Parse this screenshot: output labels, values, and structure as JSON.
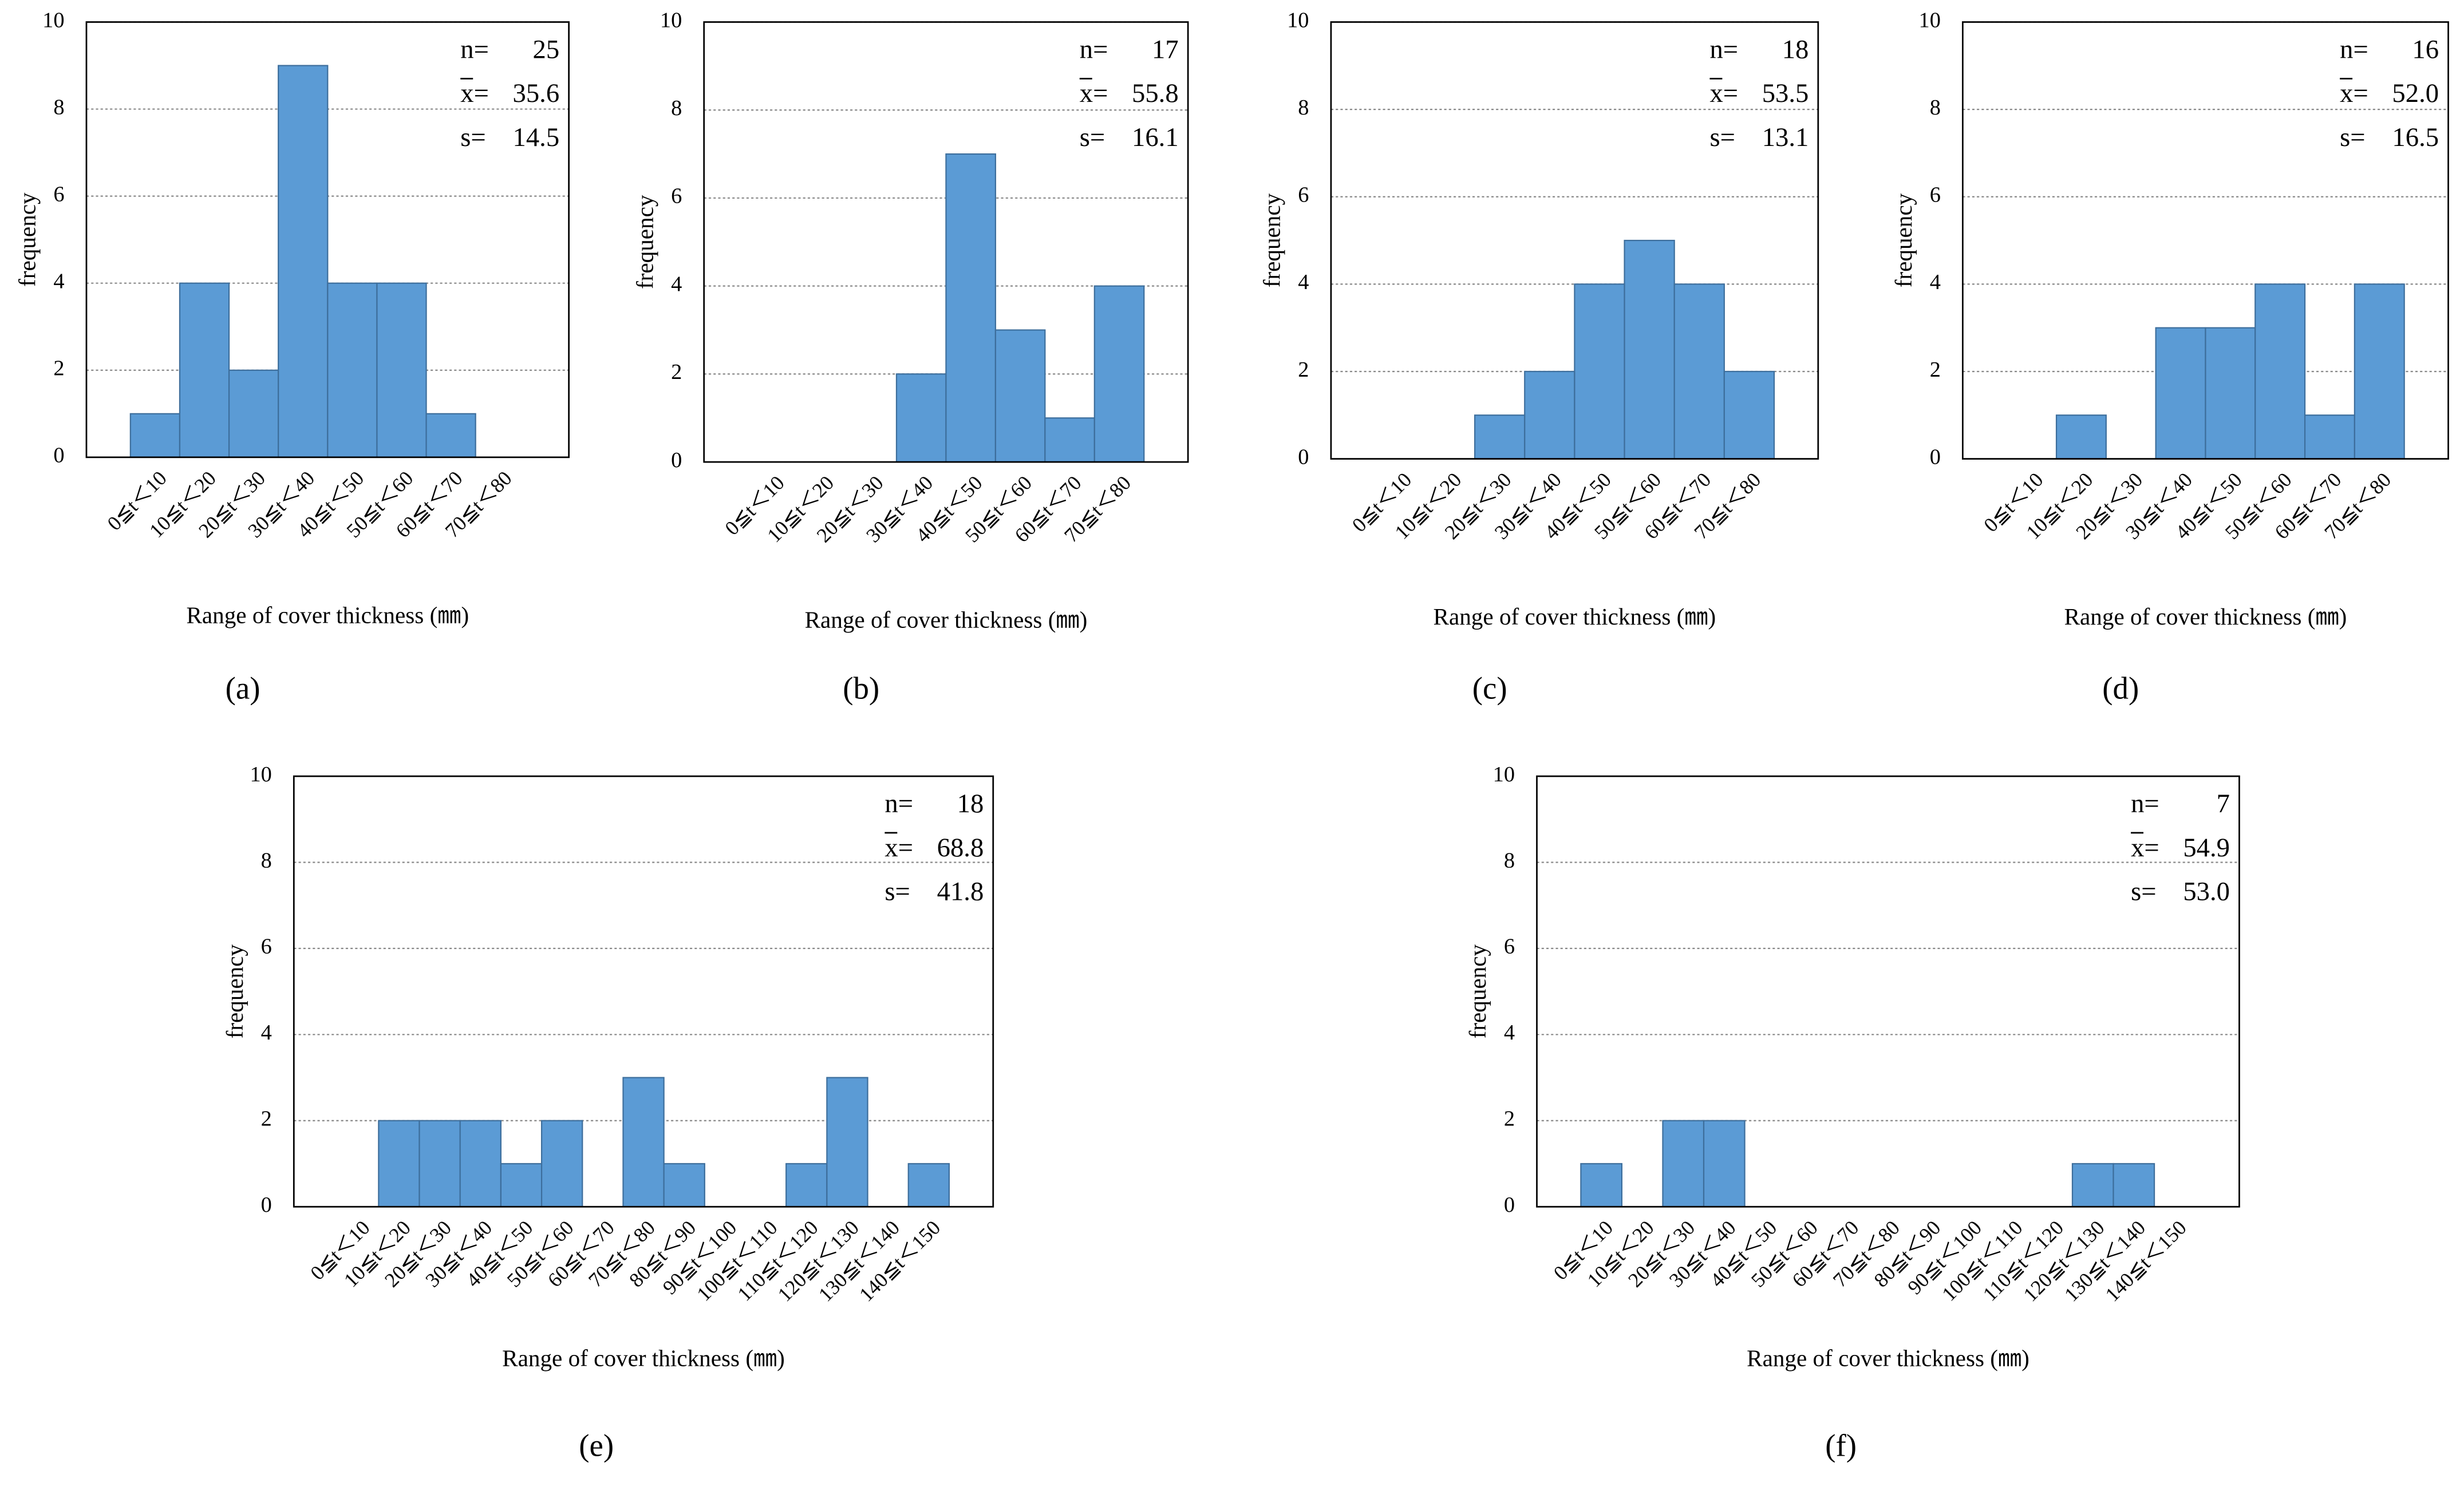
{
  "chart_data": [
    {
      "type": "bar",
      "panel_label": "(a)",
      "xlabel": "Range of cover thickness (㎜)",
      "ylabel": "frequency",
      "categories": [
        "0≦t＜10",
        "10≦t＜20",
        "20≦t＜30",
        "30≦t＜40",
        "40≦t＜50",
        "50≦t＜60",
        "60≦t＜70",
        "70≦t＜80"
      ],
      "values": [
        1,
        4,
        2,
        9,
        4,
        4,
        1,
        0
      ],
      "color": "#5b9bd5",
      "ylim": [
        0,
        10
      ],
      "yticks": [
        0,
        2,
        4,
        6,
        8,
        10
      ],
      "grid": true,
      "stats": [
        {
          "label": "n=",
          "value": "25"
        },
        {
          "label": "x=",
          "value": "35.6"
        },
        {
          "label": "s=",
          "value": "14.5"
        }
      ]
    },
    {
      "type": "bar",
      "panel_label": "(b)",
      "xlabel": "Range of cover thickness (㎜)",
      "ylabel": "frequency",
      "categories": [
        "0≦t＜10",
        "10≦t＜20",
        "20≦t＜30",
        "30≦t＜40",
        "40≦t＜50",
        "50≦t＜60",
        "60≦t＜70",
        "70≦t＜80"
      ],
      "values": [
        0,
        0,
        0,
        2,
        7,
        3,
        1,
        4
      ],
      "color": "#5b9bd5",
      "ylim": [
        0,
        10
      ],
      "yticks": [
        0,
        2,
        4,
        6,
        8,
        10
      ],
      "grid": true,
      "stats": [
        {
          "label": "n=",
          "value": "17"
        },
        {
          "label": "x=",
          "value": "55.8"
        },
        {
          "label": "s=",
          "value": "16.1"
        }
      ]
    },
    {
      "type": "bar",
      "panel_label": "(c)",
      "xlabel": "Range of cover thickness (㎜)",
      "ylabel": "frequency",
      "categories": [
        "0≦t＜10",
        "10≦t＜20",
        "20≦t＜30",
        "30≦t＜40",
        "40≦t＜50",
        "50≦t＜60",
        "60≦t＜70",
        "70≦t＜80"
      ],
      "values": [
        0,
        0,
        1,
        2,
        4,
        5,
        4,
        2
      ],
      "color": "#5b9bd5",
      "ylim": [
        0,
        10
      ],
      "yticks": [
        0,
        2,
        4,
        6,
        8,
        10
      ],
      "grid": true,
      "stats": [
        {
          "label": "n=",
          "value": "18"
        },
        {
          "label": "x=",
          "value": "53.5"
        },
        {
          "label": "s=",
          "value": "13.1"
        }
      ]
    },
    {
      "type": "bar",
      "panel_label": "(d)",
      "xlabel": "Range of cover thickness (㎜)",
      "ylabel": "frequency",
      "categories": [
        "0≦t＜10",
        "10≦t＜20",
        "20≦t＜30",
        "30≦t＜40",
        "40≦t＜50",
        "50≦t＜60",
        "60≦t＜70",
        "70≦t＜80"
      ],
      "values": [
        0,
        1,
        0,
        3,
        3,
        4,
        1,
        4
      ],
      "color": "#5b9bd5",
      "ylim": [
        0,
        10
      ],
      "yticks": [
        0,
        2,
        4,
        6,
        8,
        10
      ],
      "grid": true,
      "stats": [
        {
          "label": "n=",
          "value": "16"
        },
        {
          "label": "x=",
          "value": "52.0"
        },
        {
          "label": "s=",
          "value": "16.5"
        }
      ]
    },
    {
      "type": "bar",
      "panel_label": "(e)",
      "xlabel": "Range of cover thickness (㎜)",
      "ylabel": "frequency",
      "categories": [
        "0≦t＜10",
        "10≦t＜20",
        "20≦t＜30",
        "30≦t＜40",
        "40≦t＜50",
        "50≦t＜60",
        "60≦t＜70",
        "70≦t＜80",
        "80≦t＜90",
        "90≦t＜100",
        "100≦t＜110",
        "110≦t＜120",
        "120≦t＜130",
        "130≦t＜140",
        "140≦t＜150"
      ],
      "values": [
        0,
        2,
        2,
        2,
        1,
        2,
        0,
        3,
        1,
        0,
        0,
        1,
        3,
        0,
        1
      ],
      "color": "#5b9bd5",
      "ylim": [
        0,
        10
      ],
      "yticks": [
        0,
        2,
        4,
        6,
        8,
        10
      ],
      "grid": true,
      "stats": [
        {
          "label": "n=",
          "value": "18"
        },
        {
          "label": "x=",
          "value": "68.8"
        },
        {
          "label": "s=",
          "value": "41.8"
        }
      ]
    },
    {
      "type": "bar",
      "panel_label": "(f)",
      "xlabel": "Range of cover thickness (㎜)",
      "ylabel": "frequency",
      "categories": [
        "0≦t＜10",
        "10≦t＜20",
        "20≦t＜30",
        "30≦t＜40",
        "40≦t＜50",
        "50≦t＜60",
        "60≦t＜70",
        "70≦t＜80",
        "80≦t＜90",
        "90≦t＜100",
        "100≦t＜110",
        "110≦t＜120",
        "120≦t＜130",
        "130≦t＜140",
        "140≦t＜150"
      ],
      "values": [
        1,
        0,
        2,
        2,
        0,
        0,
        0,
        0,
        0,
        0,
        0,
        0,
        1,
        1,
        0
      ],
      "color": "#5b9bd5",
      "ylim": [
        0,
        10
      ],
      "yticks": [
        0,
        2,
        4,
        6,
        8,
        10
      ],
      "grid": true,
      "stats": [
        {
          "label": "n=",
          "value": "7"
        },
        {
          "label": "x=",
          "value": "54.9"
        },
        {
          "label": "s=",
          "value": "53.0"
        }
      ]
    }
  ]
}
